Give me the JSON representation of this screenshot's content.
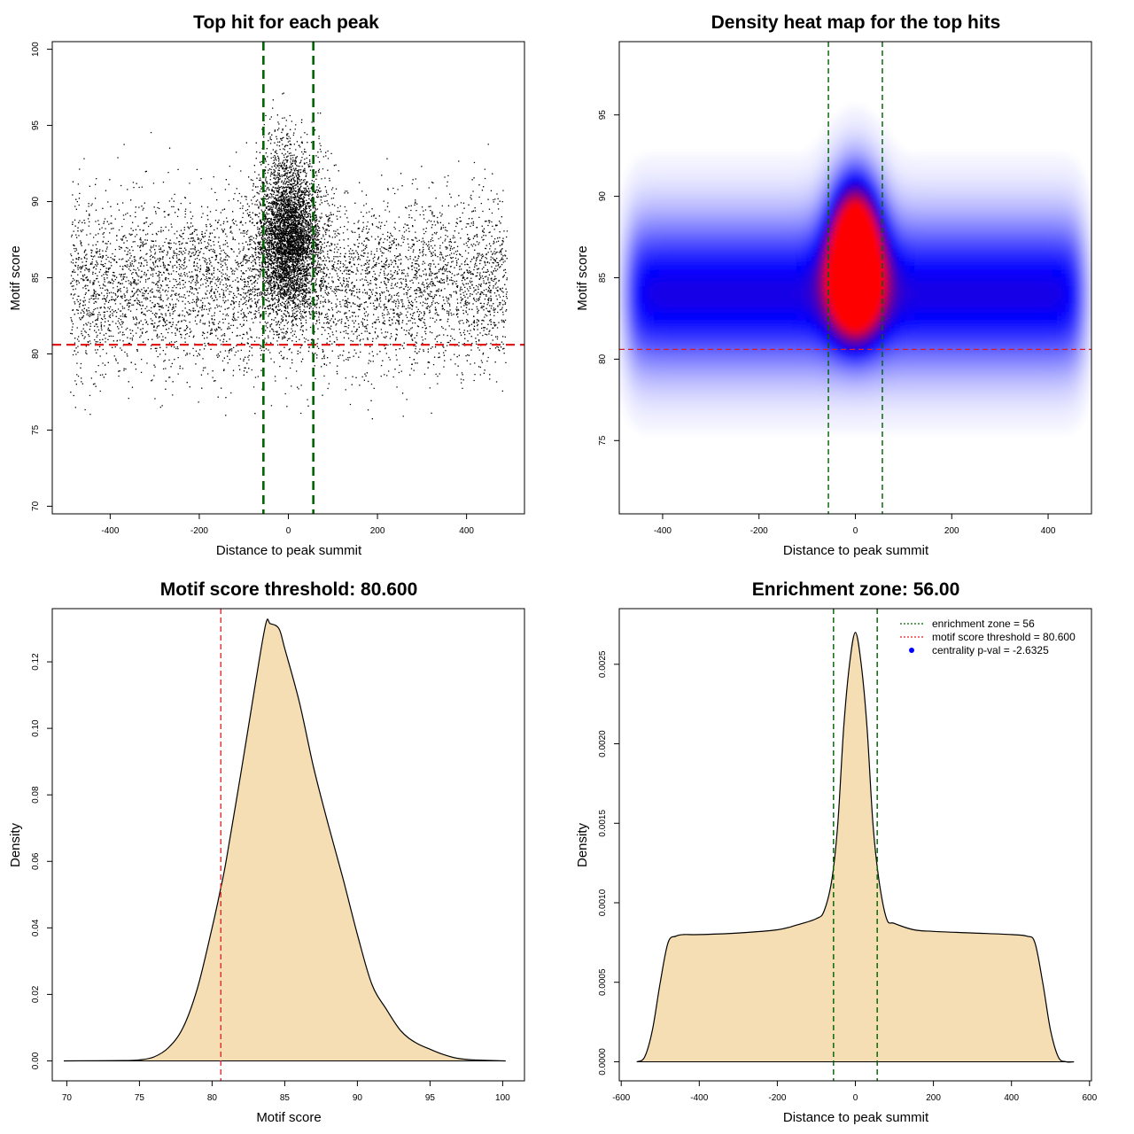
{
  "chart_data": [
    {
      "type": "scatter",
      "title": "Top hit for each peak",
      "xlabel": "Distance to peak summit",
      "ylabel": "Motif score",
      "xlim": [
        -530,
        530
      ],
      "ylim": [
        69.5,
        100.5
      ],
      "xticks": [
        -400,
        -200,
        0,
        200,
        400
      ],
      "yticks": [
        70,
        75,
        80,
        85,
        90,
        95,
        100
      ],
      "point_color": "#000000",
      "distribution": {
        "background_x_range": [
          -490,
          490
        ],
        "background_score_mean": 84.5,
        "background_score_sd": 2.8,
        "central_score_mean": 86.5,
        "central_score_sd": 3.2,
        "central_x_sd": 35
      },
      "hlines": [
        {
          "y": 80.6,
          "color": "#e31a1c",
          "style": "dashed"
        }
      ],
      "vlines": [
        {
          "x": -56,
          "color": "#006400",
          "style": "dashed"
        },
        {
          "x": 56,
          "color": "#006400",
          "style": "dashed"
        }
      ],
      "grid": false
    },
    {
      "type": "heatmap",
      "title": "Density heat map for the top hits",
      "xlabel": "Distance to peak summit",
      "ylabel": "Motif score",
      "xlim": [
        -490,
        490
      ],
      "ylim": [
        70.5,
        99.5
      ],
      "xticks": [
        -400,
        -200,
        0,
        200,
        400
      ],
      "yticks": [
        75,
        80,
        85,
        90,
        95
      ],
      "colors": [
        "#ffffff",
        "#0000ff",
        "#ff0000"
      ],
      "density": {
        "background_score_mean": 84.0,
        "background_score_sd": 3.2,
        "central_score_mean": 85.5,
        "central_score_sd": 2.4,
        "central_x_sd": 35
      },
      "hlines": [
        {
          "y": 80.6,
          "color": "#e31a1c",
          "style": "dashed"
        }
      ],
      "vlines": [
        {
          "x": -56,
          "color": "#006400",
          "style": "dashed"
        },
        {
          "x": 56,
          "color": "#006400",
          "style": "dashed"
        }
      ],
      "grid": false
    },
    {
      "type": "area",
      "title": "Motif score threshold: 80.600",
      "xlabel": "Motif score",
      "ylabel": "Density",
      "xlim": [
        69,
        101.5
      ],
      "ylim": [
        -0.006,
        0.136
      ],
      "xticks": [
        70,
        75,
        80,
        85,
        90,
        95,
        100
      ],
      "yticks": [
        0.0,
        0.02,
        0.04,
        0.06,
        0.08,
        0.1,
        0.12
      ],
      "ytick_labels": [
        "0.00",
        "0.02",
        "0.04",
        "0.06",
        "0.08",
        "0.10",
        "0.12"
      ],
      "fill_color": "#f5deb3",
      "x": [
        69.8,
        74,
        75,
        76,
        77,
        78,
        79,
        80,
        80.6,
        81,
        82,
        83,
        83.7,
        84,
        84.6,
        85,
        86,
        87,
        88,
        89,
        90,
        91,
        92,
        93,
        94,
        95,
        96,
        97,
        98,
        100.2
      ],
      "values": [
        0.0,
        0.0001,
        0.0003,
        0.0012,
        0.004,
        0.01,
        0.022,
        0.04,
        0.052,
        0.061,
        0.087,
        0.114,
        0.1315,
        0.1315,
        0.13,
        0.124,
        0.108,
        0.088,
        0.071,
        0.055,
        0.038,
        0.023,
        0.0155,
        0.009,
        0.0055,
        0.0035,
        0.0018,
        0.0007,
        0.0003,
        0.0
      ],
      "vlines": [
        {
          "x": 80.6,
          "color": "#e31a1c",
          "style": "dashed"
        }
      ],
      "grid": false
    },
    {
      "type": "area",
      "title": "Enrichment zone: 56.00",
      "xlabel": "Distance to peak summit",
      "ylabel": "Density",
      "xlim": [
        -605,
        605
      ],
      "ylim": [
        -0.00012,
        0.00285
      ],
      "xticks": [
        -600,
        -400,
        -200,
        0,
        200,
        400,
        600
      ],
      "yticks": [
        0.0,
        0.0005,
        0.001,
        0.0015,
        0.002,
        0.0025
      ],
      "ytick_labels": [
        "0.0000",
        "0.0005",
        "0.0010",
        "0.0015",
        "0.0020",
        "0.0025"
      ],
      "fill_color": "#f5deb3",
      "x": [
        -560,
        -540,
        -520,
        -500,
        -480,
        -460,
        -440,
        -400,
        -300,
        -200,
        -150,
        -100,
        -80,
        -60,
        -45,
        -30,
        -15,
        0,
        15,
        30,
        45,
        60,
        80,
        100,
        150,
        200,
        300,
        400,
        440,
        460,
        480,
        500,
        520,
        540,
        560
      ],
      "values": [
        0.0,
        3e-05,
        0.0002,
        0.0005,
        0.00075,
        0.00079,
        0.0008,
        0.0008,
        0.00081,
        0.00083,
        0.00086,
        0.0009,
        0.00095,
        0.00115,
        0.0015,
        0.0021,
        0.0025,
        0.0027,
        0.0025,
        0.0021,
        0.0015,
        0.00115,
        0.0009,
        0.00087,
        0.00083,
        0.00082,
        0.00081,
        0.0008,
        0.00079,
        0.00075,
        0.0005,
        0.0002,
        3e-05,
        0.0,
        0.0
      ],
      "vlines": [
        {
          "x": -56,
          "color": "#006400",
          "style": "dashed"
        },
        {
          "x": 56,
          "color": "#006400",
          "style": "dashed"
        }
      ],
      "legend": {
        "placement": "top-right",
        "entries": [
          {
            "label": "enrichment zone = 56",
            "color": "#006400",
            "style": "dotted"
          },
          {
            "label": "motif score threshold = 80.600",
            "color": "#e31a1c",
            "style": "dotted"
          },
          {
            "label": "centrality p-val = -2.6325",
            "color": "#0000ff",
            "style": "point"
          }
        ]
      },
      "grid": false
    }
  ]
}
